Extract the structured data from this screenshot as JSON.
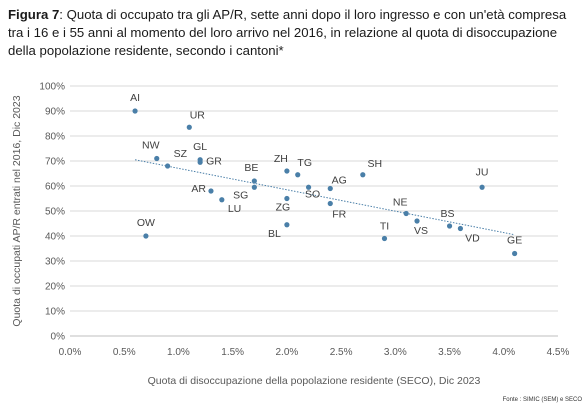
{
  "header": {
    "figure_label": "Figura 7",
    "title_text": ": Quota di occupato tra gli AP/R, sette anni dopo il loro ingresso e con un'età compresa tra i 16 e i 55 anni al momento del loro arrivo nel 2016, in relazione al quota di disoccupazione della popolazione residente, secondo i cantoni*"
  },
  "source": "Fonte : SIMIC (SEM) e SECO",
  "chart_data": {
    "type": "scatter",
    "xlabel": "Quota di disoccupazione della popolazione residente (SECO), Dic 2023",
    "ylabel": "Quota di occupati AP/R entrati nel 2016, Dic 2023",
    "xlim": [
      0,
      4.5
    ],
    "ylim": [
      0,
      100
    ],
    "x_ticks": [
      "0.0%",
      "0.5%",
      "1.0%",
      "1.5%",
      "2.0%",
      "2.5%",
      "3.0%",
      "3.5%",
      "4.0%",
      "4.5%"
    ],
    "y_ticks": [
      "0%",
      "10%",
      "20%",
      "30%",
      "40%",
      "50%",
      "60%",
      "70%",
      "80%",
      "90%",
      "100%"
    ],
    "grid": true,
    "marker_color": "#4a7fa8",
    "trendline": {
      "x": [
        0.6,
        4.1
      ],
      "y": [
        70.5,
        40.5
      ],
      "color": "#4a7fa8",
      "style": "dotted"
    },
    "points": [
      {
        "label": "AI",
        "x": 0.6,
        "y": 90
      },
      {
        "label": "UR",
        "x": 1.1,
        "y": 83.5
      },
      {
        "label": "NW",
        "x": 0.8,
        "y": 71
      },
      {
        "label": "SZ",
        "x": 0.9,
        "y": 68
      },
      {
        "label": "GL",
        "x": 1.2,
        "y": 70.5
      },
      {
        "label": "GR",
        "x": 1.2,
        "y": 69.5
      },
      {
        "label": "OW",
        "x": 0.7,
        "y": 40
      },
      {
        "label": "AR",
        "x": 1.3,
        "y": 58
      },
      {
        "label": "LU",
        "x": 1.4,
        "y": 54.5
      },
      {
        "label": "BE",
        "x": 1.7,
        "y": 62
      },
      {
        "label": "SG",
        "x": 1.7,
        "y": 59.5
      },
      {
        "label": "ZH",
        "x": 2.0,
        "y": 66
      },
      {
        "label": "TG",
        "x": 2.1,
        "y": 64.5
      },
      {
        "label": "ZG",
        "x": 2.0,
        "y": 55
      },
      {
        "label": "BL",
        "x": 2.0,
        "y": 44.5
      },
      {
        "label": "SO",
        "x": 2.2,
        "y": 59.5
      },
      {
        "label": "AG",
        "x": 2.4,
        "y": 59
      },
      {
        "label": "FR",
        "x": 2.4,
        "y": 53
      },
      {
        "label": "SH",
        "x": 2.7,
        "y": 64.5
      },
      {
        "label": "NE",
        "x": 3.1,
        "y": 49
      },
      {
        "label": "TI",
        "x": 2.9,
        "y": 39
      },
      {
        "label": "VS",
        "x": 3.2,
        "y": 46
      },
      {
        "label": "BS",
        "x": 3.5,
        "y": 44
      },
      {
        "label": "VD",
        "x": 3.6,
        "y": 43
      },
      {
        "label": "JU",
        "x": 3.8,
        "y": 59.5
      },
      {
        "label": "GE",
        "x": 4.1,
        "y": 33
      }
    ]
  }
}
